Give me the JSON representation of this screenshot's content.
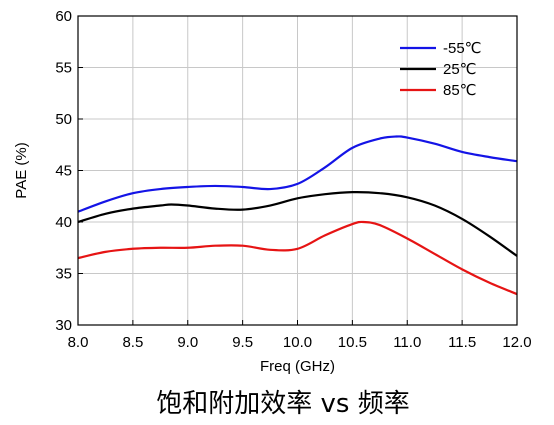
{
  "chart_data": {
    "type": "line",
    "title": "",
    "caption": "饱和附加效率 vs 频率",
    "xlabel": "Freq (GHz)",
    "ylabel": "PAE (%)",
    "xlim": [
      8.0,
      12.0
    ],
    "ylim": [
      30,
      60
    ],
    "xticks": [
      "8.0",
      "8.5",
      "9.0",
      "9.5",
      "10.0",
      "10.5",
      "11.0",
      "11.5",
      "12.0"
    ],
    "yticks": [
      "30",
      "35",
      "40",
      "45",
      "50",
      "55",
      "60"
    ],
    "grid": true,
    "legend_position": "top-right",
    "series": [
      {
        "name": "-55℃",
        "color": "#1414e6",
        "x": [
          8.0,
          8.25,
          8.5,
          8.75,
          9.0,
          9.25,
          9.5,
          9.75,
          10.0,
          10.25,
          10.5,
          10.75,
          10.9,
          11.0,
          11.25,
          11.5,
          11.75,
          12.0
        ],
        "y": [
          41.0,
          42.0,
          42.8,
          43.2,
          43.4,
          43.5,
          43.4,
          43.2,
          43.7,
          45.3,
          47.2,
          48.1,
          48.3,
          48.2,
          47.6,
          46.8,
          46.3,
          45.9
        ]
      },
      {
        "name": "25℃",
        "color": "#000000",
        "x": [
          8.0,
          8.25,
          8.5,
          8.75,
          8.85,
          9.0,
          9.25,
          9.5,
          9.75,
          10.0,
          10.25,
          10.5,
          10.75,
          11.0,
          11.25,
          11.5,
          11.75,
          12.0
        ],
        "y": [
          40.0,
          40.8,
          41.3,
          41.6,
          41.7,
          41.6,
          41.3,
          41.2,
          41.6,
          42.3,
          42.7,
          42.9,
          42.8,
          42.4,
          41.6,
          40.3,
          38.6,
          36.7
        ]
      },
      {
        "name": "85℃",
        "color": "#e61414",
        "x": [
          8.0,
          8.25,
          8.5,
          8.75,
          9.0,
          9.25,
          9.5,
          9.75,
          10.0,
          10.25,
          10.5,
          10.6,
          10.75,
          11.0,
          11.25,
          11.5,
          11.75,
          12.0
        ],
        "y": [
          36.5,
          37.1,
          37.4,
          37.5,
          37.5,
          37.7,
          37.7,
          37.3,
          37.4,
          38.7,
          39.8,
          40.0,
          39.7,
          38.4,
          36.9,
          35.4,
          34.1,
          33.0
        ]
      }
    ]
  }
}
